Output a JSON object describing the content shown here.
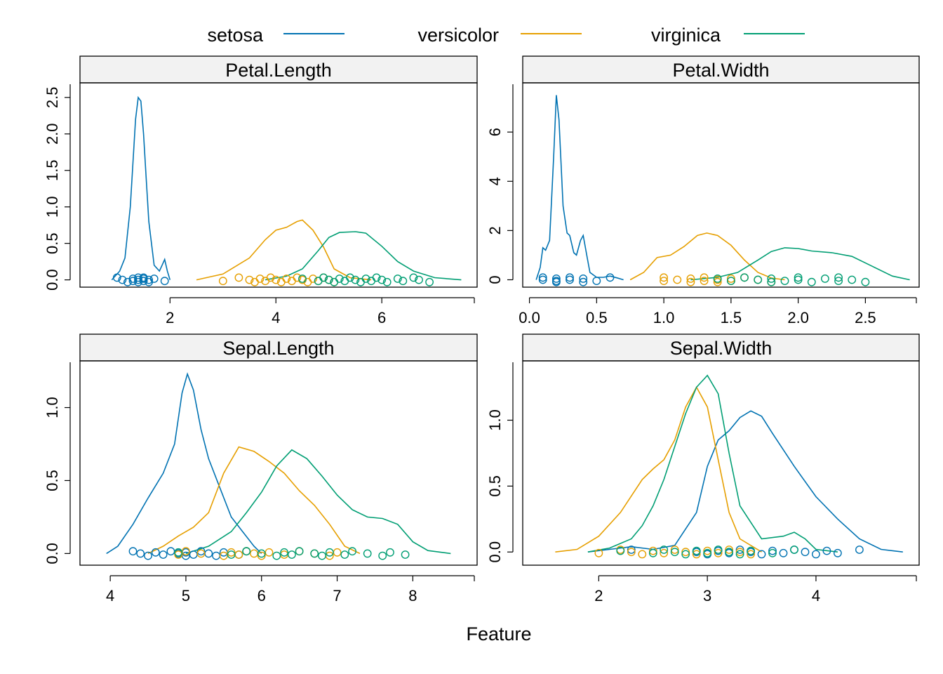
{
  "colors": {
    "setosa": "#0072B2",
    "versicolor": "#E69F00",
    "virginica": "#009E73"
  },
  "chart_data": {
    "type": "density",
    "xlabel": "Feature",
    "legend": {
      "placement": "top",
      "entries": [
        {
          "name": "setosa",
          "color_key": "setosa"
        },
        {
          "name": "versicolor",
          "color_key": "versicolor"
        },
        {
          "name": "virginica",
          "color_key": "virginica"
        }
      ]
    },
    "panels": [
      {
        "title": "Petal.Length",
        "xlim": [
          0.3,
          7.8
        ],
        "ylim": [
          -0.1,
          2.7
        ],
        "xticks": [
          {
            "v": 2,
            "label": "2"
          },
          {
            "v": 4,
            "label": "4"
          },
          {
            "v": 6,
            "label": "6"
          }
        ],
        "yticks": [
          {
            "v": 0,
            "label": "0.0"
          },
          {
            "v": 0.5,
            "label": "0.5"
          },
          {
            "v": 1,
            "label": "1.0"
          },
          {
            "v": 1.5,
            "label": "1.5"
          },
          {
            "v": 2,
            "label": "2.0"
          },
          {
            "v": 2.5,
            "label": "2.5"
          }
        ],
        "series": [
          {
            "name": "setosa",
            "x": [
              0.9,
              1.05,
              1.15,
              1.25,
              1.35,
              1.4,
              1.45,
              1.5,
              1.55,
              1.6,
              1.7,
              1.8,
              1.85,
              1.9,
              1.95,
              2.0
            ],
            "y": [
              0.0,
              0.12,
              0.3,
              1.0,
              2.2,
              2.5,
              2.45,
              2.0,
              1.4,
              0.8,
              0.2,
              0.12,
              0.2,
              0.28,
              0.12,
              0.0
            ]
          },
          {
            "name": "versicolor",
            "x": [
              2.5,
              3.0,
              3.5,
              3.8,
              4.0,
              4.2,
              4.4,
              4.5,
              4.7,
              4.9,
              5.1,
              5.4,
              5.8
            ],
            "y": [
              0.0,
              0.08,
              0.3,
              0.55,
              0.68,
              0.72,
              0.8,
              0.82,
              0.68,
              0.45,
              0.15,
              0.03,
              0.0
            ]
          },
          {
            "name": "virginica",
            "x": [
              3.8,
              4.2,
              4.5,
              4.8,
              5.0,
              5.2,
              5.5,
              5.7,
              6.0,
              6.3,
              6.6,
              7.0,
              7.5
            ],
            "y": [
              0.0,
              0.05,
              0.15,
              0.4,
              0.58,
              0.65,
              0.66,
              0.64,
              0.46,
              0.25,
              0.12,
              0.03,
              0.0
            ]
          }
        ],
        "points": {
          "setosa": [
            1.0,
            1.1,
            1.2,
            1.3,
            1.3,
            1.4,
            1.4,
            1.4,
            1.5,
            1.5,
            1.5,
            1.6,
            1.6,
            1.7,
            1.9
          ],
          "versicolor": [
            3.0,
            3.3,
            3.5,
            3.6,
            3.7,
            3.8,
            3.9,
            4.0,
            4.1,
            4.2,
            4.3,
            4.4,
            4.5,
            4.6,
            4.7,
            4.8,
            4.9,
            5.0,
            5.1
          ],
          "virginica": [
            4.5,
            4.8,
            4.9,
            5.0,
            5.1,
            5.2,
            5.3,
            5.4,
            5.5,
            5.6,
            5.7,
            5.8,
            5.9,
            6.0,
            6.1,
            6.3,
            6.4,
            6.6,
            6.7,
            6.9
          ]
        }
      },
      {
        "title": "Petal.Width",
        "xlim": [
          -0.05,
          2.9
        ],
        "ylim": [
          -0.3,
          8.0
        ],
        "xticks": [
          {
            "v": 0,
            "label": "0.0"
          },
          {
            "v": 0.5,
            "label": "0.5"
          },
          {
            "v": 1,
            "label": "1.0"
          },
          {
            "v": 1.5,
            "label": "1.5"
          },
          {
            "v": 2,
            "label": "2.0"
          },
          {
            "v": 2.5,
            "label": "2.5"
          }
        ],
        "yticks": [
          {
            "v": 0,
            "label": "0"
          },
          {
            "v": 2,
            "label": "2"
          },
          {
            "v": 4,
            "label": "4"
          },
          {
            "v": 6,
            "label": "6"
          }
        ],
        "series": [
          {
            "name": "setosa",
            "x": [
              0.05,
              0.08,
              0.1,
              0.12,
              0.15,
              0.18,
              0.2,
              0.22,
              0.25,
              0.28,
              0.3,
              0.33,
              0.35,
              0.38,
              0.4,
              0.43,
              0.45,
              0.5,
              0.55,
              0.6,
              0.65,
              0.7
            ],
            "y": [
              0.0,
              0.5,
              1.3,
              1.2,
              1.6,
              5.0,
              7.5,
              6.5,
              3.0,
              1.9,
              1.8,
              1.1,
              1.0,
              1.6,
              1.8,
              0.9,
              0.3,
              0.1,
              0.1,
              0.15,
              0.08,
              0.0
            ]
          },
          {
            "name": "versicolor",
            "x": [
              0.75,
              0.85,
              0.95,
              1.05,
              1.15,
              1.25,
              1.32,
              1.4,
              1.5,
              1.6,
              1.7,
              1.8,
              1.9
            ],
            "y": [
              0.0,
              0.3,
              0.9,
              1.0,
              1.35,
              1.8,
              1.9,
              1.8,
              1.4,
              0.8,
              0.3,
              0.07,
              0.0
            ]
          },
          {
            "name": "virginica",
            "x": [
              1.2,
              1.4,
              1.55,
              1.7,
              1.8,
              1.9,
              2.0,
              2.1,
              2.25,
              2.4,
              2.55,
              2.7,
              2.83
            ],
            "y": [
              0.0,
              0.1,
              0.3,
              0.8,
              1.15,
              1.3,
              1.27,
              1.17,
              1.1,
              0.95,
              0.55,
              0.15,
              0.0
            ]
          }
        ],
        "points": {
          "setosa": [
            0.1,
            0.1,
            0.2,
            0.2,
            0.2,
            0.3,
            0.3,
            0.4,
            0.4,
            0.5,
            0.6
          ],
          "versicolor": [
            1.0,
            1.0,
            1.1,
            1.2,
            1.2,
            1.3,
            1.3,
            1.4,
            1.4,
            1.5,
            1.5,
            1.6,
            1.7,
            1.8
          ],
          "virginica": [
            1.4,
            1.5,
            1.6,
            1.7,
            1.8,
            1.8,
            1.9,
            2.0,
            2.0,
            2.1,
            2.2,
            2.3,
            2.3,
            2.4,
            2.5
          ]
        }
      },
      {
        "title": "Sepal.Length",
        "xlim": [
          3.6,
          8.85
        ],
        "ylim": [
          -0.08,
          1.32
        ],
        "xticks": [
          {
            "v": 4,
            "label": "4"
          },
          {
            "v": 5,
            "label": "5"
          },
          {
            "v": 6,
            "label": "6"
          },
          {
            "v": 7,
            "label": "7"
          },
          {
            "v": 8,
            "label": "8"
          }
        ],
        "yticks": [
          {
            "v": 0,
            "label": "0.0"
          },
          {
            "v": 0.5,
            "label": "0.5"
          },
          {
            "v": 1,
            "label": "1.0"
          }
        ],
        "series": [
          {
            "name": "setosa",
            "x": [
              3.95,
              4.1,
              4.3,
              4.5,
              4.7,
              4.85,
              4.95,
              5.02,
              5.1,
              5.2,
              5.3,
              5.45,
              5.6,
              5.75,
              5.9,
              6.0
            ],
            "y": [
              0.0,
              0.05,
              0.2,
              0.38,
              0.55,
              0.75,
              1.1,
              1.23,
              1.12,
              0.85,
              0.65,
              0.45,
              0.25,
              0.15,
              0.05,
              0.0
            ]
          },
          {
            "name": "versicolor",
            "x": [
              4.5,
              4.7,
              4.9,
              5.1,
              5.3,
              5.5,
              5.7,
              5.9,
              6.1,
              6.3,
              6.5,
              6.7,
              6.9,
              7.1,
              7.3
            ],
            "y": [
              0.0,
              0.05,
              0.12,
              0.18,
              0.28,
              0.55,
              0.73,
              0.7,
              0.63,
              0.55,
              0.43,
              0.33,
              0.2,
              0.05,
              0.0
            ]
          },
          {
            "name": "virginica",
            "x": [
              5.0,
              5.3,
              5.6,
              5.8,
              6.0,
              6.2,
              6.4,
              6.6,
              6.8,
              7.0,
              7.2,
              7.4,
              7.6,
              7.8,
              8.0,
              8.2,
              8.5
            ],
            "y": [
              0.0,
              0.05,
              0.15,
              0.28,
              0.42,
              0.6,
              0.71,
              0.65,
              0.53,
              0.4,
              0.3,
              0.25,
              0.24,
              0.2,
              0.08,
              0.02,
              0.0
            ]
          }
        ],
        "points": {
          "setosa": [
            4.3,
            4.4,
            4.5,
            4.6,
            4.7,
            4.8,
            4.9,
            5.0,
            5.0,
            5.1,
            5.2,
            5.3,
            5.4,
            5.5,
            5.7,
            5.8
          ],
          "versicolor": [
            4.9,
            5.0,
            5.2,
            5.5,
            5.6,
            5.7,
            5.8,
            5.9,
            6.0,
            6.1,
            6.3,
            6.5,
            6.7,
            6.9,
            7.0
          ],
          "virginica": [
            4.9,
            5.6,
            5.8,
            6.0,
            6.2,
            6.3,
            6.4,
            6.5,
            6.7,
            6.8,
            6.9,
            7.1,
            7.2,
            7.4,
            7.6,
            7.7,
            7.9
          ]
        }
      },
      {
        "title": "Sepal.Width",
        "xlim": [
          1.3,
          4.95
        ],
        "ylim": [
          -0.1,
          1.45
        ],
        "xticks": [
          {
            "v": 2,
            "label": "2"
          },
          {
            "v": 3,
            "label": "3"
          },
          {
            "v": 4,
            "label": "4"
          }
        ],
        "yticks": [
          {
            "v": 0,
            "label": "0.0"
          },
          {
            "v": 0.5,
            "label": "0.5"
          },
          {
            "v": 1,
            "label": "1.0"
          }
        ],
        "series": [
          {
            "name": "setosa",
            "x": [
              1.9,
              2.1,
              2.3,
              2.5,
              2.7,
              2.9,
              3.0,
              3.1,
              3.2,
              3.3,
              3.4,
              3.5,
              3.6,
              3.8,
              4.0,
              4.2,
              4.4,
              4.6,
              4.8
            ],
            "y": [
              0.0,
              0.02,
              0.04,
              0.02,
              0.05,
              0.3,
              0.65,
              0.85,
              0.92,
              1.02,
              1.07,
              1.03,
              0.9,
              0.65,
              0.42,
              0.25,
              0.1,
              0.02,
              0.0
            ]
          },
          {
            "name": "versicolor",
            "x": [
              1.6,
              1.8,
              2.0,
              2.2,
              2.4,
              2.5,
              2.6,
              2.7,
              2.8,
              2.9,
              3.0,
              3.1,
              3.2,
              3.3,
              3.5
            ],
            "y": [
              0.0,
              0.02,
              0.12,
              0.3,
              0.55,
              0.63,
              0.7,
              0.85,
              1.1,
              1.25,
              1.1,
              0.7,
              0.3,
              0.1,
              0.0
            ]
          },
          {
            "name": "virginica",
            "x": [
              1.9,
              2.1,
              2.3,
              2.4,
              2.5,
              2.6,
              2.7,
              2.8,
              2.9,
              3.0,
              3.1,
              3.2,
              3.3,
              3.5,
              3.7,
              3.8,
              3.9,
              4.0,
              4.2
            ],
            "y": [
              0.0,
              0.03,
              0.1,
              0.2,
              0.35,
              0.55,
              0.8,
              1.05,
              1.25,
              1.34,
              1.2,
              0.75,
              0.35,
              0.1,
              0.12,
              0.15,
              0.1,
              0.02,
              0.0
            ]
          }
        ],
        "points": {
          "setosa": [
            2.3,
            2.9,
            3.0,
            3.1,
            3.2,
            3.3,
            3.4,
            3.5,
            3.6,
            3.7,
            3.8,
            3.9,
            4.0,
            4.1,
            4.2,
            4.4
          ],
          "versicolor": [
            2.0,
            2.2,
            2.3,
            2.4,
            2.5,
            2.6,
            2.7,
            2.8,
            2.9,
            3.0,
            3.1,
            3.2,
            3.3,
            3.4
          ],
          "virginica": [
            2.2,
            2.5,
            2.6,
            2.7,
            2.8,
            2.9,
            3.0,
            3.1,
            3.2,
            3.3,
            3.4,
            3.6,
            3.8
          ]
        }
      }
    ]
  }
}
